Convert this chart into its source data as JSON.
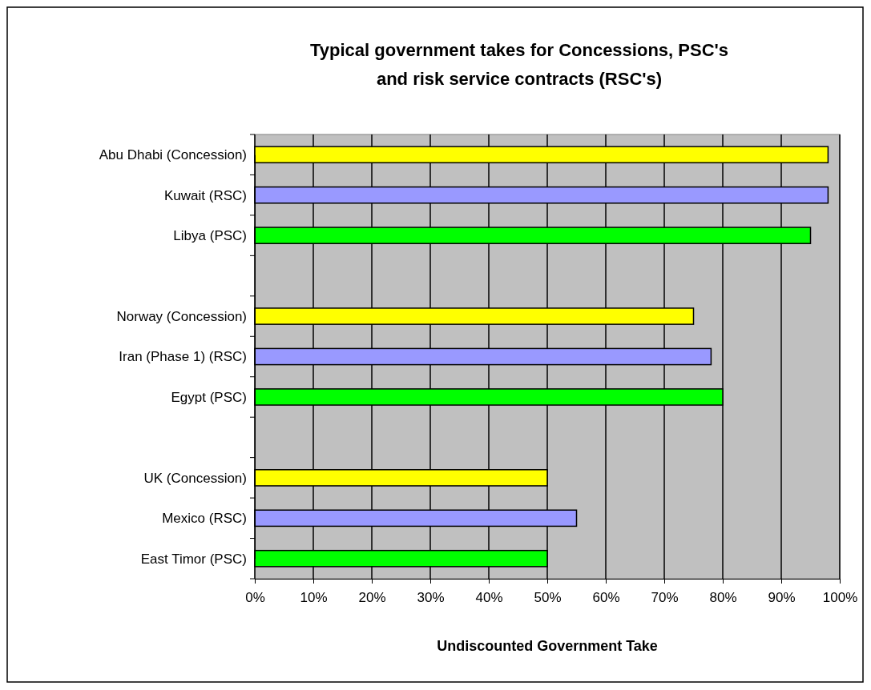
{
  "chart_data": {
    "type": "bar",
    "orientation": "horizontal",
    "title": "Typical government takes for Concessions, PSC's\nand risk service contracts (RSC's)",
    "xlabel": "Undiscounted Government Take",
    "categories": [
      "Abu Dhabi (Concession)",
      "Kuwait (RSC)",
      "Libya (PSC)",
      null,
      "Norway (Concession)",
      "Iran (Phase 1) (RSC)",
      "Egypt (PSC)",
      null,
      "UK (Concession)",
      "Mexico (RSC)",
      "East Timor (PSC)"
    ],
    "values": [
      98,
      98,
      95,
      null,
      75,
      78,
      80,
      null,
      50,
      55,
      50
    ],
    "colors": [
      "#ffff00",
      "#9999ff",
      "#00ff00",
      null,
      "#ffff00",
      "#9999ff",
      "#00ff00",
      null,
      "#ffff00",
      "#9999ff",
      "#00ff00"
    ],
    "xlim": [
      0,
      100
    ],
    "xticks": [
      {
        "value": 0,
        "label": "0%"
      },
      {
        "value": 10,
        "label": "10%"
      },
      {
        "value": 20,
        "label": "20%"
      },
      {
        "value": 30,
        "label": "30%"
      },
      {
        "value": 40,
        "label": "40%"
      },
      {
        "value": 50,
        "label": "50%"
      },
      {
        "value": 60,
        "label": "60%"
      },
      {
        "value": 70,
        "label": "70%"
      },
      {
        "value": 80,
        "label": "80%"
      },
      {
        "value": 90,
        "label": "90%"
      },
      {
        "value": 100,
        "label": "100%"
      }
    ],
    "grid": "x"
  }
}
